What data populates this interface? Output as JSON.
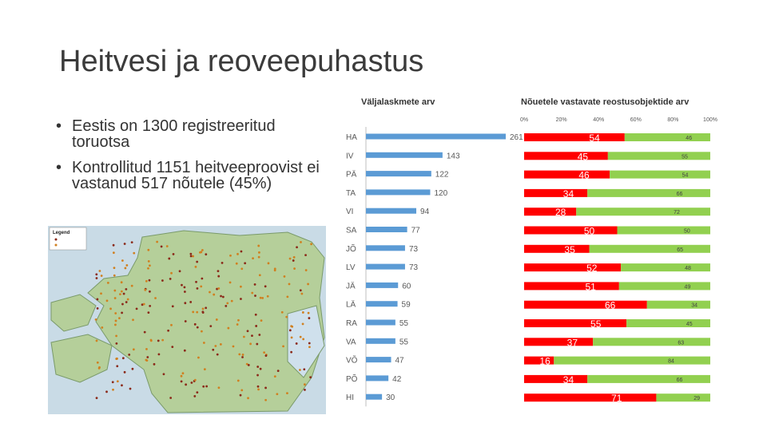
{
  "slide": {
    "title": "Heitvesi ja reoveepuhastus",
    "bullets": [
      "Eestis on 1300 registreeritud toruotsa",
      "Kontrollitud 1151 heitveeproovist ei vastanud 517 nõutele (45%)"
    ]
  },
  "map": {
    "legend_title": "Legend"
  },
  "chart_data": [
    {
      "type": "bar",
      "orientation": "horizontal",
      "title": "Väljalaskmete arv",
      "categories": [
        "HA",
        "IV",
        "PÄ",
        "TA",
        "VI",
        "SA",
        "JÕ",
        "LV",
        "JÄ",
        "LÄ",
        "RA",
        "VA",
        "VÕ",
        "PÕ",
        "HI"
      ],
      "values": [
        261,
        143,
        122,
        120,
        94,
        77,
        73,
        73,
        60,
        59,
        55,
        55,
        47,
        42,
        30
      ],
      "color": "#5b9bd5"
    },
    {
      "type": "bar",
      "orientation": "horizontal",
      "stacked": true,
      "percent": true,
      "title": "Nõuetele vastavate reostusobjektide arv",
      "axis_ticks": [
        "0%",
        "20%",
        "40%",
        "60%",
        "80%",
        "100%"
      ],
      "categories": [
        "HA",
        "IV",
        "PÄ",
        "TA",
        "VI",
        "SA",
        "JÕ",
        "LV",
        "JÄ",
        "LÄ",
        "RA",
        "VA",
        "VÕ",
        "PÕ",
        "HI"
      ],
      "series": [
        {
          "values": [
            54,
            45,
            46,
            34,
            28,
            50,
            35,
            52,
            51,
            66,
            55,
            37,
            16,
            34,
            71
          ],
          "color": "#ff0000"
        },
        {
          "values": [
            46,
            55,
            54,
            66,
            72,
            50,
            65,
            48,
            49,
            34,
            45,
            63,
            84,
            66,
            29
          ],
          "color": "#92d050"
        }
      ]
    }
  ]
}
